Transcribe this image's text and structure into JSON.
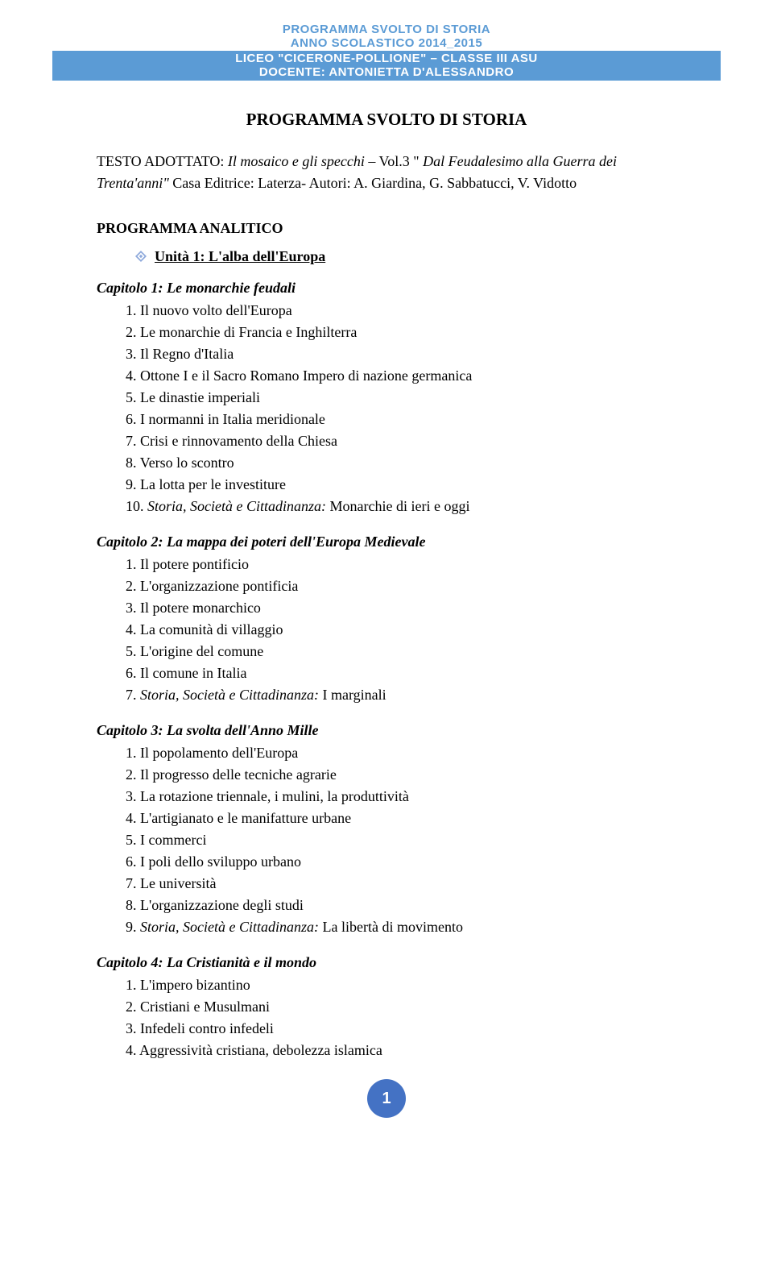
{
  "header": {
    "line1": "PROGRAMMA SVOLTO DI STORIA",
    "line2": "ANNO SCOLASTICO 2014_2015",
    "line3": "LICEO \"CICERONE-POLLIONE\" – CLASSE III ASU",
    "line4": "DOCENTE: ANTONIETTA D'ALESSANDRO"
  },
  "main_title": "PROGRAMMA SVOLTO DI STORIA",
  "intro": {
    "label": "TESTO ADOTTATO: ",
    "italic1": "Il mosaico e gli specchi",
    "mid1": " – Vol.3 \" ",
    "italic2": "Dal Feudalesimo alla Guerra dei Trenta'anni\"",
    "rest": " Casa Editrice: Laterza- Autori: A. Giardina, G. Sabbatucci, V. Vidotto"
  },
  "prog_analitico": "PROGRAMMA ANALITICO",
  "unit_title": "Unità 1: L'alba dell'Europa",
  "chapters": [
    {
      "title": "Capitolo 1: Le monarchie feudali",
      "items": [
        {
          "n": "1.",
          "text": "Il nuovo volto dell'Europa"
        },
        {
          "n": "2.",
          "text": "Le monarchie di Francia e Inghilterra"
        },
        {
          "n": "3.",
          "text": "Il Regno d'Italia"
        },
        {
          "n": "4.",
          "text": "Ottone I e il Sacro Romano Impero di nazione germanica"
        },
        {
          "n": "5.",
          "text": "Le dinastie imperiali"
        },
        {
          "n": "6.",
          "text": "I normanni in Italia meridionale"
        },
        {
          "n": "7.",
          "text": "Crisi e rinnovamento della Chiesa"
        },
        {
          "n": "8.",
          "text": "Verso lo scontro"
        },
        {
          "n": "9.",
          "text": "La lotta per le investiture"
        },
        {
          "n": "10.",
          "italic_prefix": "Storia, Società e Cittadinanza:",
          "text": " Monarchie di ieri e oggi"
        }
      ]
    },
    {
      "title": "Capitolo 2: La mappa dei poteri dell'Europa Medievale",
      "items": [
        {
          "n": "1.",
          "text": "Il potere pontificio"
        },
        {
          "n": "2.",
          "text": "L'organizzazione pontificia"
        },
        {
          "n": "3.",
          "text": "Il potere monarchico"
        },
        {
          "n": "4.",
          "text": "La comunità di villaggio"
        },
        {
          "n": "5.",
          "text": "L'origine del comune"
        },
        {
          "n": "6.",
          "text": "Il comune in Italia"
        },
        {
          "n": "7.",
          "italic_prefix": "Storia, Società e Cittadinanza:",
          "text": " I marginali"
        }
      ]
    },
    {
      "title": "Capitolo 3: La svolta dell'Anno Mille",
      "items": [
        {
          "n": "1.",
          "text": "Il popolamento dell'Europa"
        },
        {
          "n": "2.",
          "text": "Il progresso delle tecniche agrarie"
        },
        {
          "n": "3.",
          "text": "La rotazione triennale, i mulini, la produttività"
        },
        {
          "n": "4.",
          "text": "L'artigianato e le manifatture urbane"
        },
        {
          "n": "5.",
          "text": "I commerci"
        },
        {
          "n": "6.",
          "text": "I poli dello sviluppo urbano"
        },
        {
          "n": "7.",
          "text": "Le università"
        },
        {
          "n": "8.",
          "text": "L'organizzazione degli studi"
        },
        {
          "n": "9.",
          "italic_prefix": "Storia, Società e Cittadinanza:",
          "text": " La libertà di movimento"
        }
      ]
    },
    {
      "title": "Capitolo 4: La Cristianità e il mondo",
      "items": [
        {
          "n": "1.",
          "text": "L'impero bizantino"
        },
        {
          "n": "2.",
          "text": "Cristiani e Musulmani"
        },
        {
          "n": "3.",
          "text": "Infedeli contro infedeli"
        },
        {
          "n": "4.",
          "text": "Aggressività cristiana, debolezza islamica"
        }
      ]
    }
  ],
  "page_number": "1",
  "colors": {
    "header_text": "#5b9bd5",
    "banner_bg": "#5b9bd5",
    "banner_text": "#ffffff",
    "page_num_bg": "#4472c4",
    "diamond": "#8faadc"
  }
}
